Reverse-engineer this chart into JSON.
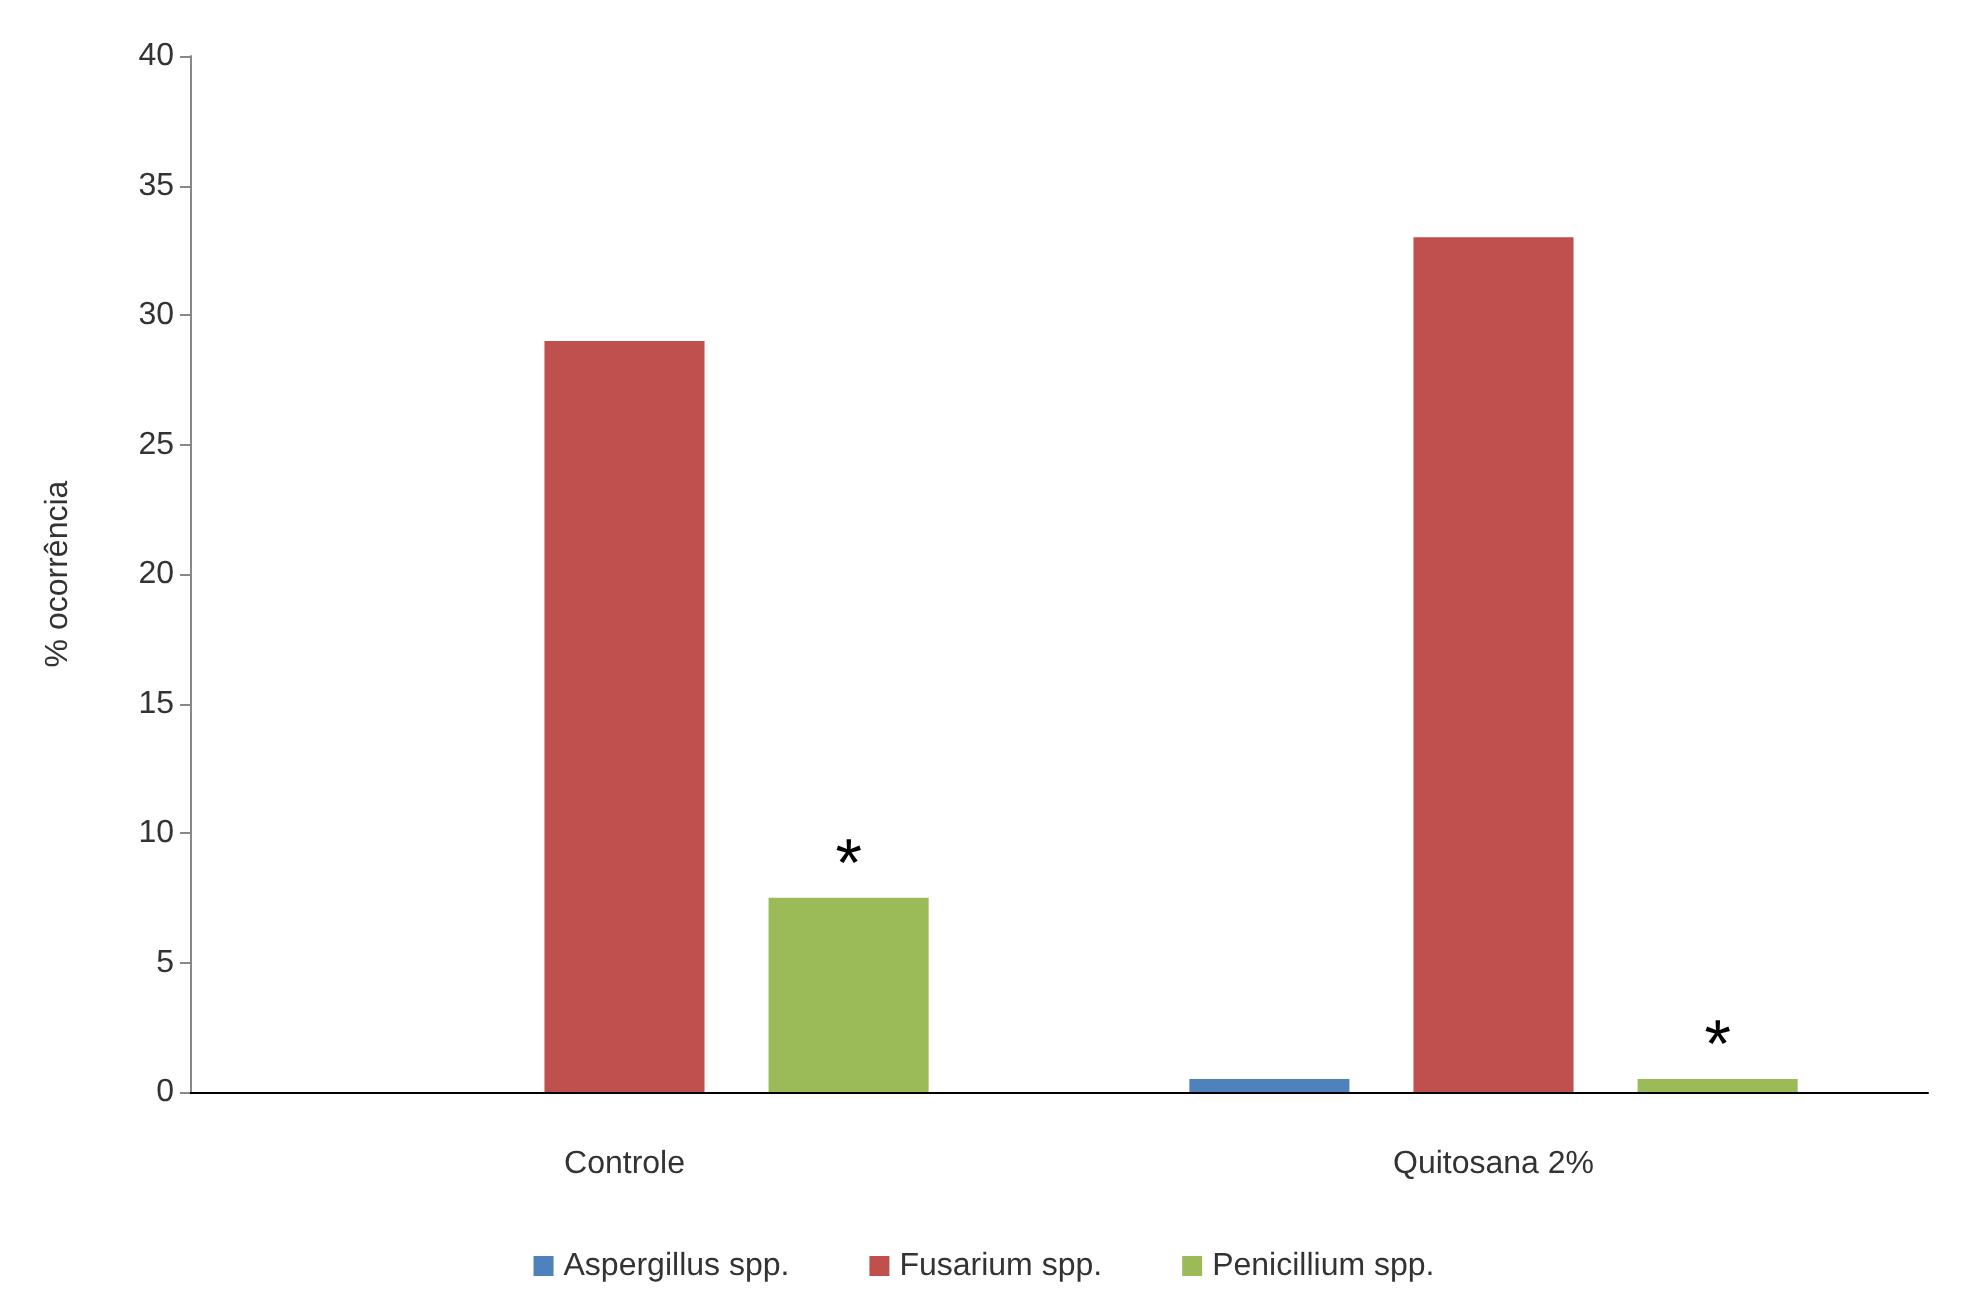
{
  "chart_data": {
    "type": "bar",
    "ylabel": "% ocorrência",
    "categories": [
      "Controle",
      "Quitosana 2%"
    ],
    "series": [
      {
        "name": "Aspergillus spp.",
        "color": "#4f81bd",
        "values": [
          0,
          0.5
        ]
      },
      {
        "name": "Fusarium spp.",
        "color": "#c0504d",
        "values": [
          29,
          33
        ]
      },
      {
        "name": "Penicillium spp.",
        "color": "#9bbb59",
        "values": [
          7.5,
          0.5
        ],
        "value_labels": [
          "*",
          "*"
        ]
      }
    ],
    "ylim": [
      0,
      40
    ],
    "yticks": [
      0,
      5,
      10,
      15,
      20,
      25,
      30,
      35,
      40
    ],
    "grid": false,
    "legend": "bottom"
  }
}
